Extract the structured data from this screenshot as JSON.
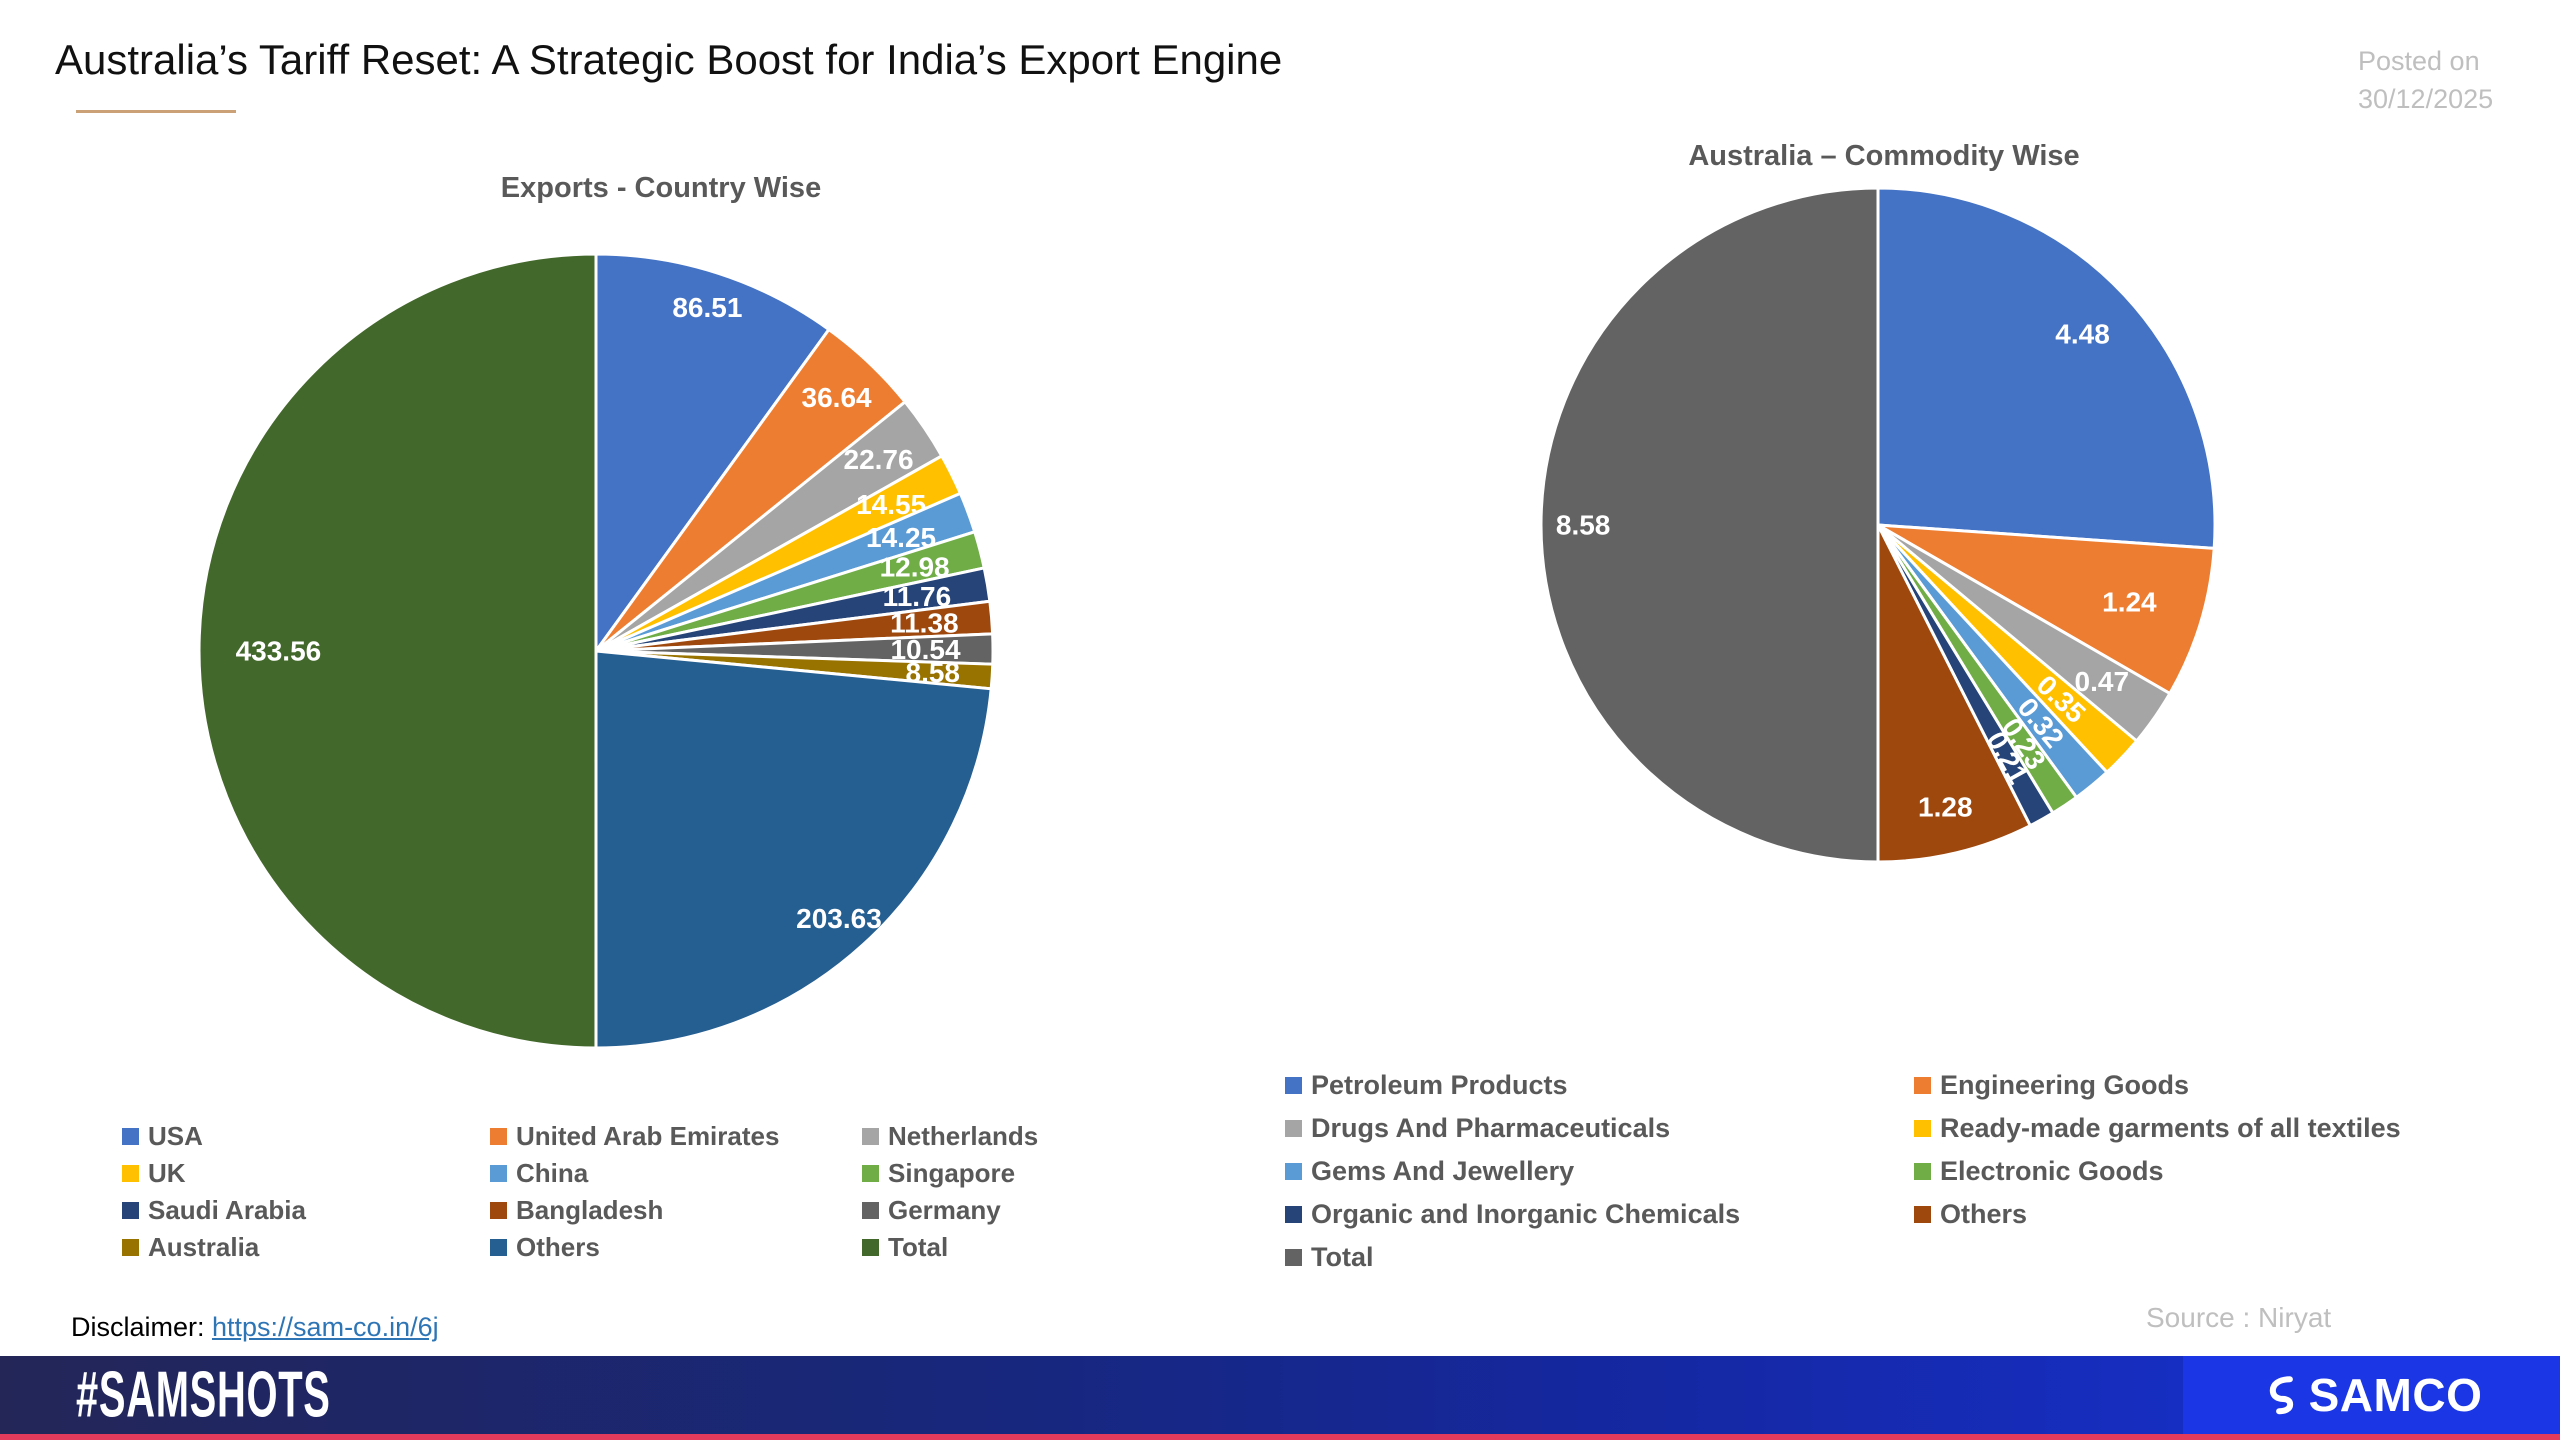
{
  "header": {
    "title": "Australia’s Tariff Reset: A Strategic Boost for India’s Export Engine",
    "posted_on_line1": "Posted on",
    "posted_on_line2": "30/12/2025"
  },
  "colors": {
    "title_underline": "#CBA177",
    "legend_text": "#595959",
    "muted_text": "#BFBFBF",
    "link": "#2E75B6",
    "footer_gradient_start": "#232657",
    "footer_gradient_end": "#1632D8",
    "brand_block": "#1B36E4",
    "bottom_strip": "#E23B5B",
    "value_label": "#FFFFFF"
  },
  "chart_data": [
    {
      "type": "pie",
      "title": "Exports - Country Wise",
      "legend_position": "bottom",
      "legend_columns": 3,
      "start_angle_deg": 0,
      "direction": "clockwise",
      "slices": [
        {
          "label": "USA",
          "value": 86.51,
          "color": "#4472C4",
          "label_r": 0.91,
          "rotate": false
        },
        {
          "label": "United Arab Emirates",
          "value": 36.64,
          "color": "#ED7D31",
          "label_r": 0.88,
          "rotate": false
        },
        {
          "label": "Netherlands",
          "value": 22.76,
          "color": "#A5A5A5",
          "label_r": 0.86,
          "rotate": false
        },
        {
          "label": "UK",
          "value": 14.55,
          "color": "#FFC000",
          "label_r": 0.83,
          "rotate": false
        },
        {
          "label": "China",
          "value": 14.25,
          "color": "#5B9BD5",
          "label_r": 0.82,
          "rotate": false
        },
        {
          "label": "Singapore",
          "value": 12.98,
          "color": "#70AD47",
          "label_r": 0.83,
          "rotate": false
        },
        {
          "label": "Saudi Arabia",
          "value": 11.76,
          "color": "#264478",
          "label_r": 0.82,
          "rotate": false
        },
        {
          "label": "Bangladesh",
          "value": 11.38,
          "color": "#9E480E",
          "label_r": 0.83,
          "rotate": false
        },
        {
          "label": "Germany",
          "value": 10.54,
          "color": "#636363",
          "label_r": 0.83,
          "rotate": false
        },
        {
          "label": "Australia",
          "value": 8.58,
          "color": "#997300",
          "label_r": 0.85,
          "rotate": false
        },
        {
          "label": "Others",
          "value": 203.63,
          "color": "#255E91",
          "label_r": 0.91,
          "rotate": false
        },
        {
          "label": "Total",
          "value": 433.56,
          "color": "#43682B",
          "label_r": 0.8,
          "rotate": false
        }
      ]
    },
    {
      "type": "pie",
      "title": "Australia – Commodity Wise",
      "legend_position": "bottom",
      "legend_columns": 2,
      "start_angle_deg": 0,
      "direction": "clockwise",
      "slices": [
        {
          "label": "Petroleum Products",
          "value": 4.48,
          "color": "#4472C4",
          "label_r": 0.83,
          "rotate": false
        },
        {
          "label": "Engineering Goods",
          "value": 1.24,
          "color": "#ED7D31",
          "label_r": 0.78,
          "rotate": false
        },
        {
          "label": "Drugs And Pharmaceuticals",
          "value": 0.47,
          "color": "#A5A5A5",
          "label_r": 0.81,
          "rotate": false
        },
        {
          "label": "Ready-made garments of all textiles",
          "value": 0.35,
          "color": "#FFC000",
          "label_r": 0.75,
          "rotate": true
        },
        {
          "label": "Gems And Jewellery",
          "value": 0.32,
          "color": "#5B9BD5",
          "label_r": 0.76,
          "rotate": true
        },
        {
          "label": "Electronic Goods",
          "value": 0.23,
          "color": "#70AD47",
          "label_r": 0.78,
          "rotate": true
        },
        {
          "label": "Organic and Inorganic Chemicals",
          "value": 0.21,
          "color": "#264478",
          "label_r": 0.79,
          "rotate": true
        },
        {
          "label": "Others",
          "value": 1.28,
          "color": "#9E480E",
          "label_r": 0.86,
          "rotate": false
        },
        {
          "label": "Total",
          "value": 8.58,
          "color": "#636363",
          "label_r": 0.875,
          "rotate": false
        }
      ]
    }
  ],
  "footer": {
    "disclaimer_label": "Disclaimer: ",
    "disclaimer_link": "https://sam-co.in/6j",
    "source": "Source : Niryat",
    "hashtag": "#SAMSHOTS",
    "brand": "SAMCO"
  }
}
